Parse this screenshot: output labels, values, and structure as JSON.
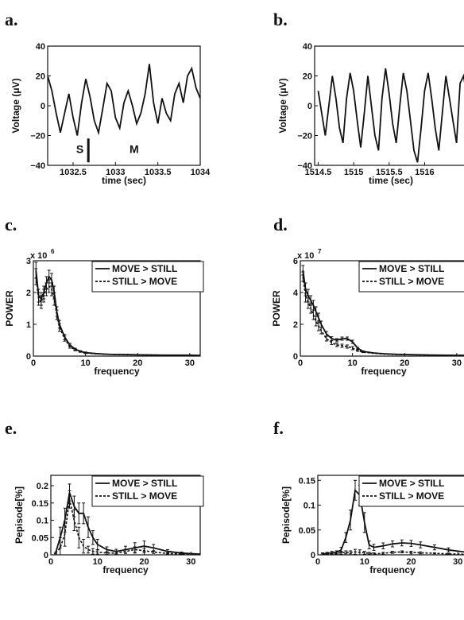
{
  "panels": [
    "a.",
    "b.",
    "c.",
    "d.",
    "e.",
    "f."
  ],
  "chart_data": [
    {
      "type": "line",
      "panel": "a.",
      "xlabel": "time (sec)",
      "ylabel": "Voltage (μV)",
      "xlim": [
        1032.2,
        1034
      ],
      "ylim": [
        -40,
        40
      ],
      "xticks": [
        1032.5,
        1033,
        1033.5,
        1034
      ],
      "xtick_labels": [
        "1032.5",
        "1033",
        "1033.5",
        "1034"
      ],
      "yticks": [
        -40,
        -20,
        0,
        20,
        40
      ],
      "ytick_labels": [
        "−40",
        "−20",
        "0",
        "20",
        "40"
      ],
      "annotations": [
        {
          "text": "S",
          "x": 1032.58,
          "y": -29
        },
        {
          "text": "M",
          "x": 1033.22,
          "y": -29
        }
      ],
      "marker_x": 1032.68,
      "x": [
        1032.2,
        1032.25,
        1032.3,
        1032.35,
        1032.4,
        1032.45,
        1032.5,
        1032.55,
        1032.6,
        1032.65,
        1032.7,
        1032.75,
        1032.8,
        1032.85,
        1032.9,
        1032.95,
        1033,
        1033.05,
        1033.1,
        1033.15,
        1033.2,
        1033.25,
        1033.3,
        1033.35,
        1033.4,
        1033.45,
        1033.5,
        1033.55,
        1033.6,
        1033.65,
        1033.7,
        1033.75,
        1033.8,
        1033.85,
        1033.9,
        1033.95,
        1034
      ],
      "y": [
        20,
        10,
        -5,
        -18,
        -5,
        8,
        -8,
        -20,
        2,
        18,
        6,
        -10,
        -18,
        -2,
        15,
        10,
        -8,
        -15,
        2,
        10,
        0,
        -12,
        -5,
        8,
        28,
        2,
        -12,
        5,
        -5,
        -10,
        8,
        15,
        2,
        20,
        25,
        12,
        5
      ]
    },
    {
      "type": "line",
      "panel": "b.",
      "xlabel": "time (sec)",
      "ylabel": "Voltage (μV)",
      "xlim": [
        1514.45,
        1516.6
      ],
      "ylim": [
        -40,
        40
      ],
      "xticks": [
        1514.5,
        1515,
        1515.5,
        1516
      ],
      "xtick_labels": [
        "1514.5",
        "1515",
        "1515.5",
        "1516"
      ],
      "yticks": [
        -40,
        -20,
        0,
        20,
        40
      ],
      "ytick_labels": [
        "−40",
        "−20",
        "0",
        "20",
        "40"
      ],
      "x": [
        1514.5,
        1514.55,
        1514.6,
        1514.65,
        1514.7,
        1514.75,
        1514.8,
        1514.85,
        1514.9,
        1514.95,
        1515,
        1515.05,
        1515.1,
        1515.15,
        1515.2,
        1515.25,
        1515.3,
        1515.35,
        1515.4,
        1515.45,
        1515.5,
        1515.55,
        1515.6,
        1515.65,
        1515.7,
        1515.75,
        1515.8,
        1515.85,
        1515.9,
        1515.95,
        1516,
        1516.05,
        1516.1,
        1516.15,
        1516.2,
        1516.25,
        1516.3,
        1516.35,
        1516.4,
        1516.45,
        1516.5,
        1516.55,
        1516.6
      ],
      "y": [
        10,
        -5,
        -20,
        0,
        20,
        5,
        -15,
        -25,
        5,
        22,
        10,
        -10,
        -28,
        -5,
        20,
        0,
        -20,
        -30,
        5,
        25,
        8,
        -12,
        -25,
        0,
        22,
        10,
        -10,
        -30,
        -38,
        -15,
        10,
        22,
        5,
        -15,
        -30,
        -5,
        20,
        5,
        -10,
        -25,
        15,
        20,
        5
      ]
    },
    {
      "type": "line",
      "panel": "c.",
      "xlabel": "frequency",
      "ylabel": "POWER",
      "multiplier": "x 10",
      "multiplier_exp": "6",
      "xlim": [
        0,
        32
      ],
      "ylim": [
        0,
        3
      ],
      "xticks": [
        0,
        10,
        20,
        30
      ],
      "xtick_labels": [
        "0",
        "10",
        "20",
        "30"
      ],
      "yticks": [
        0,
        1,
        2,
        3
      ],
      "ytick_labels": [
        "0",
        "1",
        "2",
        "3"
      ],
      "legend_position": "top-right",
      "series": [
        {
          "name": "MOVE > STILL",
          "style": "solid",
          "x": [
            0.5,
            1,
            1.5,
            2,
            2.5,
            3,
            3.5,
            4,
            4.5,
            5,
            6,
            7,
            8,
            9,
            10,
            12,
            14,
            16,
            18,
            20,
            25,
            30,
            32
          ],
          "y": [
            2.7,
            1.9,
            1.8,
            2.0,
            2.3,
            2.5,
            2.4,
            2.0,
            1.4,
            1.0,
            0.6,
            0.35,
            0.22,
            0.15,
            0.11,
            0.08,
            0.06,
            0.05,
            0.05,
            0.04,
            0.03,
            0.03,
            0.02
          ],
          "err": [
            0.25,
            0.2,
            0.2,
            0.2,
            0.2,
            0.2,
            0.2,
            0.2,
            0.15,
            0.12,
            0.08,
            0.05,
            0.03,
            0.02,
            0.02,
            0,
            0,
            0,
            0,
            0,
            0,
            0,
            0
          ]
        },
        {
          "name": "STILL > MOVE",
          "style": "dashed",
          "x": [
            0.5,
            1,
            1.5,
            2,
            2.5,
            3,
            3.5,
            4,
            4.5,
            5,
            6,
            7,
            8,
            9,
            10,
            12,
            14,
            16,
            18,
            20,
            25,
            30,
            32
          ],
          "y": [
            2.5,
            1.8,
            1.7,
            1.9,
            2.1,
            2.2,
            2.1,
            1.8,
            1.3,
            0.9,
            0.55,
            0.3,
            0.2,
            0.14,
            0.1,
            0.07,
            0.06,
            0.05,
            0.04,
            0.04,
            0.03,
            0.02,
            0.02
          ],
          "err": [
            0.25,
            0.2,
            0.2,
            0.2,
            0.2,
            0.2,
            0.2,
            0.2,
            0.15,
            0.12,
            0.08,
            0.05,
            0.03,
            0.02,
            0.02,
            0,
            0,
            0,
            0,
            0,
            0,
            0,
            0
          ]
        }
      ]
    },
    {
      "type": "line",
      "panel": "d.",
      "xlabel": "frequency",
      "ylabel": "POWER",
      "multiplier": "x 10",
      "multiplier_exp": "7",
      "xlim": [
        0,
        32
      ],
      "ylim": [
        0,
        6
      ],
      "xticks": [
        0,
        10,
        20,
        30
      ],
      "xtick_labels": [
        "0",
        "10",
        "20",
        "30"
      ],
      "yticks": [
        0,
        2,
        4,
        6
      ],
      "ytick_labels": [
        "0",
        "2",
        "4",
        "6"
      ],
      "legend_position": "top-right",
      "series": [
        {
          "name": "MOVE > STILL",
          "style": "solid",
          "x": [
            0.5,
            1,
            1.5,
            2,
            2.5,
            3,
            3.5,
            4,
            5,
            6,
            7,
            8,
            9,
            10,
            11,
            12,
            14,
            16,
            18,
            20,
            25,
            30,
            32
          ],
          "y": [
            5.4,
            4.2,
            3.8,
            3.5,
            3.2,
            2.8,
            2.4,
            2.0,
            1.4,
            1.1,
            1.0,
            1.1,
            1.1,
            0.9,
            0.5,
            0.3,
            0.2,
            0.15,
            0.12,
            0.1,
            0.07,
            0.05,
            0.05
          ],
          "err": [
            0.3,
            0.4,
            0.4,
            0.3,
            0.3,
            0.3,
            0.3,
            0.2,
            0.15,
            0.12,
            0.1,
            0.1,
            0.1,
            0.1,
            0.05,
            0.03,
            0,
            0,
            0,
            0,
            0,
            0,
            0
          ]
        },
        {
          "name": "STILL > MOVE",
          "style": "dashed",
          "x": [
            0.5,
            1,
            1.5,
            2,
            2.5,
            3,
            3.5,
            4,
            5,
            6,
            7,
            8,
            9,
            10,
            11,
            12,
            14,
            16,
            18,
            20,
            25,
            30,
            32
          ],
          "y": [
            5.0,
            3.8,
            3.4,
            3.0,
            2.6,
            2.2,
            1.9,
            1.6,
            1.1,
            0.85,
            0.7,
            0.65,
            0.6,
            0.5,
            0.35,
            0.25,
            0.18,
            0.13,
            0.1,
            0.09,
            0.06,
            0.05,
            0.04
          ],
          "err": [
            0.3,
            0.4,
            0.4,
            0.3,
            0.3,
            0.3,
            0.3,
            0.2,
            0.15,
            0.12,
            0.1,
            0.1,
            0.1,
            0.1,
            0.05,
            0.03,
            0,
            0,
            0,
            0,
            0,
            0,
            0
          ]
        }
      ]
    },
    {
      "type": "line",
      "panel": "e.",
      "xlabel": "frequency",
      "ylabel": "Pepisode[%]",
      "xlim": [
        0,
        32
      ],
      "ylim": [
        0,
        0.23
      ],
      "xticks": [
        0,
        10,
        20,
        30
      ],
      "xtick_labels": [
        "0",
        "10",
        "20",
        "30"
      ],
      "yticks": [
        0,
        0.05,
        0.1,
        0.15,
        0.2
      ],
      "ytick_labels": [
        "0",
        "0.05",
        "0.1",
        "0.15",
        "0.2"
      ],
      "legend_position": "top-right",
      "series": [
        {
          "name": "MOVE > STILL",
          "style": "solid",
          "x": [
            1,
            2,
            3,
            4,
            5,
            6,
            7,
            8,
            9,
            10,
            12,
            14,
            16,
            18,
            20,
            22,
            25,
            28,
            32
          ],
          "y": [
            0.005,
            0.05,
            0.1,
            0.18,
            0.14,
            0.12,
            0.12,
            0.08,
            0.05,
            0.03,
            0.015,
            0.01,
            0.015,
            0.02,
            0.025,
            0.02,
            0.01,
            0.005,
            0.002
          ],
          "err": [
            0.002,
            0.03,
            0.035,
            0.025,
            0.03,
            0.03,
            0.03,
            0.03,
            0.02,
            0.015,
            0.008,
            0.006,
            0.01,
            0.015,
            0.015,
            0.01,
            0.005,
            0.003,
            0.001
          ]
        },
        {
          "name": "STILL > MOVE",
          "style": "dashed",
          "x": [
            1,
            2,
            3,
            4,
            5,
            6,
            7,
            8,
            9,
            10,
            12,
            14,
            16,
            18,
            20,
            22,
            25,
            28,
            32
          ],
          "y": [
            0.005,
            0.02,
            0.06,
            0.16,
            0.1,
            0.05,
            0.025,
            0.015,
            0.01,
            0.008,
            0.005,
            0.005,
            0.01,
            0.015,
            0.012,
            0.008,
            0.004,
            0.002,
            0.001
          ],
          "err": [
            0.002,
            0.03,
            0.035,
            0.025,
            0.03,
            0.03,
            0.02,
            0.01,
            0.008,
            0.006,
            0.004,
            0.004,
            0.006,
            0.008,
            0.006,
            0.004,
            0.002,
            0.001,
            0.001
          ]
        }
      ]
    },
    {
      "type": "line",
      "panel": "f.",
      "xlabel": "frequency",
      "ylabel": "Pepisode[%]",
      "xlim": [
        0,
        32
      ],
      "ylim": [
        0,
        0.16
      ],
      "xticks": [
        0,
        10,
        20,
        30
      ],
      "xtick_labels": [
        "0",
        "10",
        "20",
        "30"
      ],
      "yticks": [
        0,
        0.05,
        0.1,
        0.15
      ],
      "ytick_labels": [
        "0",
        "0.05",
        "0.1",
        "0.15"
      ],
      "legend_position": "top-right",
      "series": [
        {
          "name": "MOVE > STILL",
          "style": "solid",
          "x": [
            1,
            2,
            3,
            4,
            5,
            6,
            7,
            8,
            9,
            10,
            11,
            12,
            14,
            16,
            18,
            20,
            22,
            25,
            28,
            32
          ],
          "y": [
            0.002,
            0.003,
            0.004,
            0.005,
            0.01,
            0.035,
            0.07,
            0.13,
            0.12,
            0.065,
            0.02,
            0.015,
            0.018,
            0.022,
            0.024,
            0.023,
            0.02,
            0.015,
            0.01,
            0.005
          ],
          "err": [
            0.002,
            0.002,
            0.003,
            0.003,
            0.005,
            0.01,
            0.02,
            0.02,
            0.02,
            0.02,
            0.008,
            0.006,
            0.006,
            0.006,
            0.006,
            0.006,
            0.006,
            0.005,
            0.004,
            0.002
          ]
        },
        {
          "name": "STILL > MOVE",
          "style": "dashed",
          "x": [
            1,
            2,
            3,
            4,
            5,
            6,
            7,
            8,
            9,
            10,
            11,
            12,
            14,
            16,
            18,
            20,
            22,
            25,
            28,
            32
          ],
          "y": [
            0.001,
            0.002,
            0.002,
            0.003,
            0.004,
            0.005,
            0.005,
            0.006,
            0.005,
            0.004,
            0.003,
            0.002,
            0.003,
            0.005,
            0.006,
            0.005,
            0.004,
            0.003,
            0.002,
            0.001
          ],
          "err": [
            0.001,
            0.001,
            0.001,
            0.002,
            0.003,
            0.003,
            0.003,
            0.005,
            0.005,
            0.003,
            0.002,
            0.002,
            0.002,
            0.002,
            0.002,
            0.002,
            0.002,
            0.001,
            0.001,
            0.001
          ]
        }
      ]
    }
  ]
}
